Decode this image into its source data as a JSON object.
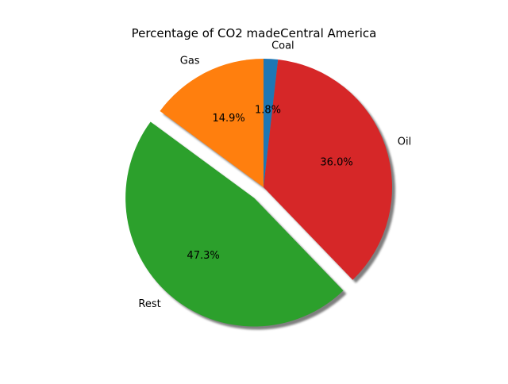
{
  "chart_data": {
    "type": "pie",
    "title": "Percentage of CO2 madeCentral America",
    "categories": [
      "Coal",
      "Oil",
      "Rest",
      "Gas"
    ],
    "values": [
      1.8,
      36.0,
      47.3,
      14.9
    ],
    "labels": [
      "1.8%",
      "36.0%",
      "47.3%",
      "14.9%"
    ],
    "colors": [
      "#1f77b4",
      "#d62728",
      "#2ca02c",
      "#ff7f0e"
    ],
    "exploded": [
      "Rest"
    ],
    "shadow": true,
    "start_angle_deg": 90,
    "direction": "clockwise",
    "legend": "none"
  }
}
